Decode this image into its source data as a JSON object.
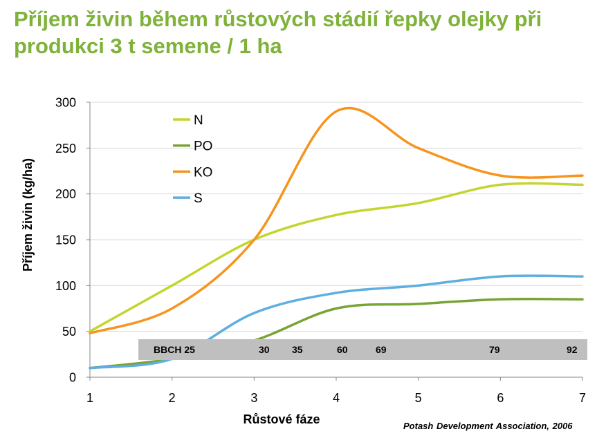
{
  "slide": {
    "title": "Příjem živin během růstových stádií řepky olejky při produkci 3 t semene / 1 ha",
    "title_color": "#7fb23a",
    "source": "Potash Development Association, 2006"
  },
  "chart_data": {
    "type": "line",
    "smooth": true,
    "x": [
      1,
      2,
      3,
      4,
      5,
      6,
      7
    ],
    "y_ticks": [
      0,
      50,
      100,
      150,
      200,
      250,
      300
    ],
    "xlabel": "Růstové fáze",
    "ylabel": "Příjem živin (kg/ha)",
    "xlim": [
      1,
      7
    ],
    "ylim": [
      0,
      300
    ],
    "grid": "horizontal",
    "legend": "top-left",
    "series": [
      {
        "name": "N",
        "color": "#c3d52f",
        "values": [
          50,
          100,
          150,
          177,
          190,
          210,
          210
        ]
      },
      {
        "name": "PO",
        "color": "#78a336",
        "values": [
          10,
          20,
          40,
          75,
          80,
          85,
          85
        ]
      },
      {
        "name": "KO",
        "color": "#f7941e",
        "values": [
          48,
          75,
          150,
          290,
          250,
          220,
          220
        ]
      },
      {
        "name": "S",
        "color": "#5eaee0",
        "values": [
          10,
          20,
          70,
          92,
          100,
          110,
          110
        ]
      }
    ],
    "bbch_band": {
      "labels": [
        "BBCH 25",
        "30",
        "35",
        "60",
        "69",
        "79",
        "92"
      ],
      "color": "#bfbfbf"
    }
  }
}
